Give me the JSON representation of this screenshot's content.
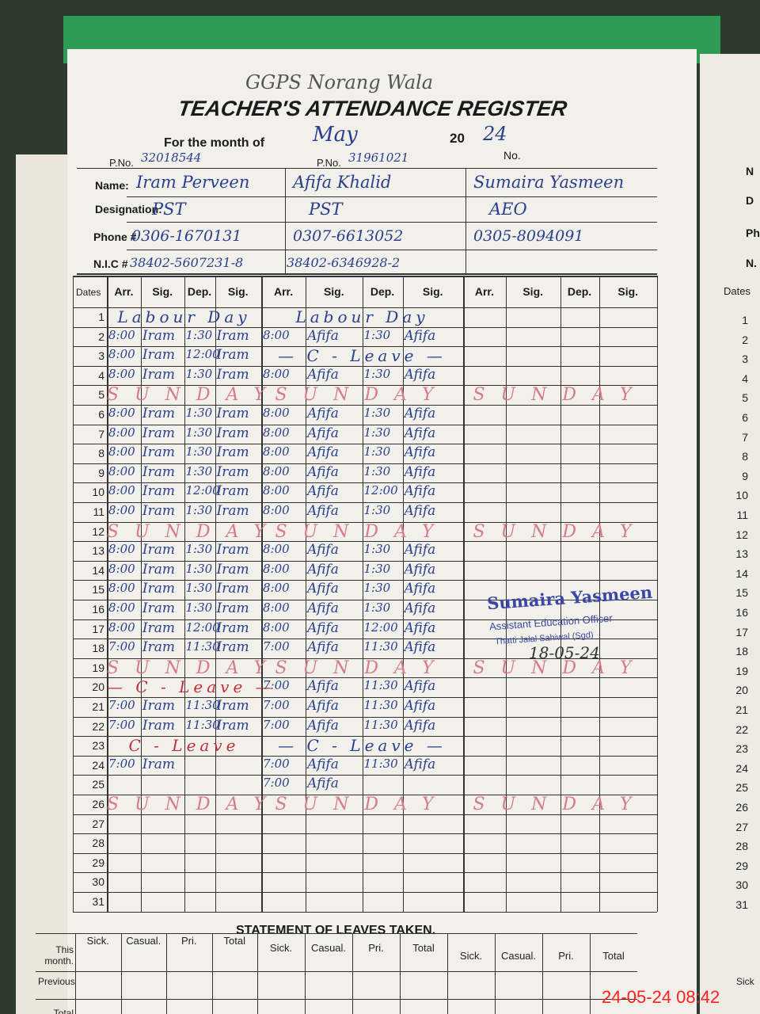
{
  "header": {
    "school": "GGPS Norang Wala",
    "title": "TEACHER'S ATTENDANCE REGISTER",
    "month_label": "For the month of",
    "month": "May",
    "year_label": "20",
    "year": "24",
    "no_label": "No."
  },
  "labels": {
    "pno": "P.No.",
    "name": "Name:",
    "designation": "Designation:",
    "phone": "Phone #",
    "nic": "N.I.C #"
  },
  "teachers": [
    {
      "pno": "32018544",
      "name": "Iram Perveen",
      "designation": "PST",
      "phone": "0306-1670131",
      "nic": "38402-5607231-8"
    },
    {
      "pno": "31961021",
      "name": "Afifa Khalid",
      "designation": "PST",
      "phone": "0307-6613052",
      "nic": "38402-6346928-2"
    },
    {
      "name": "Sumaira Yasmeen",
      "designation": "AEO",
      "phone": "0305-8094091"
    }
  ],
  "table": {
    "dates_label": "Dates",
    "columns": [
      "Arr.",
      "Sig.",
      "Dep.",
      "Sig."
    ],
    "rows": [
      {
        "date": 1,
        "cells": [
          "Labour Day",
          "Labour Day"
        ]
      },
      {
        "date": 2,
        "cells": [
          [
            "8:00",
            "Iram",
            "1:30",
            "Iram"
          ],
          [
            "8:00",
            "Afifa",
            "1:30",
            "Afifa"
          ]
        ]
      },
      {
        "date": 3,
        "cells": [
          [
            "8:00",
            "Iram",
            "12:00",
            "Iram"
          ],
          "— C - Leave —"
        ]
      },
      {
        "date": 4,
        "cells": [
          [
            "8:00",
            "Iram",
            "1:30",
            "Iram"
          ],
          [
            "8:00",
            "Afifa",
            "1:30",
            "Afifa"
          ]
        ]
      },
      {
        "date": 5,
        "cells": [
          "SUNDAY",
          "SUNDAY",
          "SUNDAY"
        ]
      },
      {
        "date": 6,
        "cells": [
          [
            "8:00",
            "Iram",
            "1:30",
            "Iram"
          ],
          [
            "8:00",
            "Afifa",
            "1:30",
            "Afifa"
          ]
        ]
      },
      {
        "date": 7,
        "cells": [
          [
            "8:00",
            "Iram",
            "1:30",
            "Iram"
          ],
          [
            "8:00",
            "Afifa",
            "1:30",
            "Afifa"
          ]
        ]
      },
      {
        "date": 8,
        "cells": [
          [
            "8:00",
            "Iram",
            "1:30",
            "Iram"
          ],
          [
            "8:00",
            "Afifa",
            "1:30",
            "Afifa"
          ]
        ]
      },
      {
        "date": 9,
        "cells": [
          [
            "8:00",
            "Iram",
            "1:30",
            "Iram"
          ],
          [
            "8:00",
            "Afifa",
            "1:30",
            "Afifa"
          ]
        ]
      },
      {
        "date": 10,
        "cells": [
          [
            "8:00",
            "Iram",
            "12:00",
            "Iram"
          ],
          [
            "8:00",
            "Afifa",
            "12:00",
            "Afifa"
          ]
        ]
      },
      {
        "date": 11,
        "cells": [
          [
            "8:00",
            "Iram",
            "1:30",
            "Iram"
          ],
          [
            "8:00",
            "Afifa",
            "1:30",
            "Afifa"
          ]
        ]
      },
      {
        "date": 12,
        "cells": [
          "SUNDAY",
          "SUNDAY",
          "SUNDAY"
        ]
      },
      {
        "date": 13,
        "cells": [
          [
            "8:00",
            "Iram",
            "1:30",
            "Iram"
          ],
          [
            "8:00",
            "Afifa",
            "1:30",
            "Afifa"
          ]
        ]
      },
      {
        "date": 14,
        "cells": [
          [
            "8:00",
            "Iram",
            "1:30",
            "Iram"
          ],
          [
            "8:00",
            "Afifa",
            "1:30",
            "Afifa"
          ]
        ]
      },
      {
        "date": 15,
        "cells": [
          [
            "8:00",
            "Iram",
            "1:30",
            "Iram"
          ],
          [
            "8:00",
            "Afifa",
            "1:30",
            "Afifa"
          ]
        ]
      },
      {
        "date": 16,
        "cells": [
          [
            "8:00",
            "Iram",
            "1:30",
            "Iram"
          ],
          [
            "8:00",
            "Afifa",
            "1:30",
            "Afifa"
          ]
        ]
      },
      {
        "date": 17,
        "cells": [
          [
            "8:00",
            "Iram",
            "12:00",
            "Iram"
          ],
          [
            "8:00",
            "Afifa",
            "12:00",
            "Afifa"
          ]
        ]
      },
      {
        "date": 18,
        "cells": [
          [
            "7:00",
            "Iram",
            "11:30",
            "Iram"
          ],
          [
            "7:00",
            "Afifa",
            "11:30",
            "Afifa"
          ]
        ]
      },
      {
        "date": 19,
        "cells": [
          "SUNDAY",
          "SUNDAY",
          "SUNDAY"
        ]
      },
      {
        "date": 20,
        "cells": [
          "— C - Leave —",
          [
            "7:00",
            "Afifa",
            "11:30",
            "Afifa"
          ]
        ]
      },
      {
        "date": 21,
        "cells": [
          [
            "7:00",
            "Iram",
            "11:30",
            "Iram"
          ],
          [
            "7:00",
            "Afifa",
            "11:30",
            "Afifa"
          ]
        ]
      },
      {
        "date": 22,
        "cells": [
          [
            "7:00",
            "Iram",
            "11:30",
            "Iram"
          ],
          [
            "7:00",
            "Afifa",
            "11:30",
            "Afifa"
          ]
        ]
      },
      {
        "date": 23,
        "cells": [
          "C - Leave",
          "— C - Leave —"
        ]
      },
      {
        "date": 24,
        "cells": [
          [
            "7:00",
            "Iram"
          ],
          [
            "7:00",
            "Afifa",
            "11:30",
            "Afifa"
          ]
        ]
      },
      {
        "date": 25,
        "cells": [
          null,
          [
            "7:00",
            "Afifa"
          ]
        ]
      },
      {
        "date": 26,
        "cells": [
          "SUNDAY",
          "SUNDAY",
          "SUNDAY"
        ]
      },
      {
        "date": 27
      },
      {
        "date": 28
      },
      {
        "date": 29
      },
      {
        "date": 30
      },
      {
        "date": 31
      }
    ]
  },
  "stamp": {
    "name": "Sumaira Yasmeen",
    "office": "Assistant Education Officer",
    "place": "Thatti Jalal Sahiwal (Sgd)",
    "date": "18-05-24"
  },
  "leaves": {
    "title": "STATEMENT OF LEAVES TAKEN.",
    "columns": [
      "Sick.",
      "Casual.",
      "Pri.",
      "Total"
    ],
    "rows": [
      "This month.",
      "Previous",
      "Total"
    ]
  },
  "right_page": {
    "labels": [
      "N",
      "D",
      "Ph",
      "N."
    ],
    "sick": "Sick"
  },
  "timestamp": "24-05-24 08:42"
}
